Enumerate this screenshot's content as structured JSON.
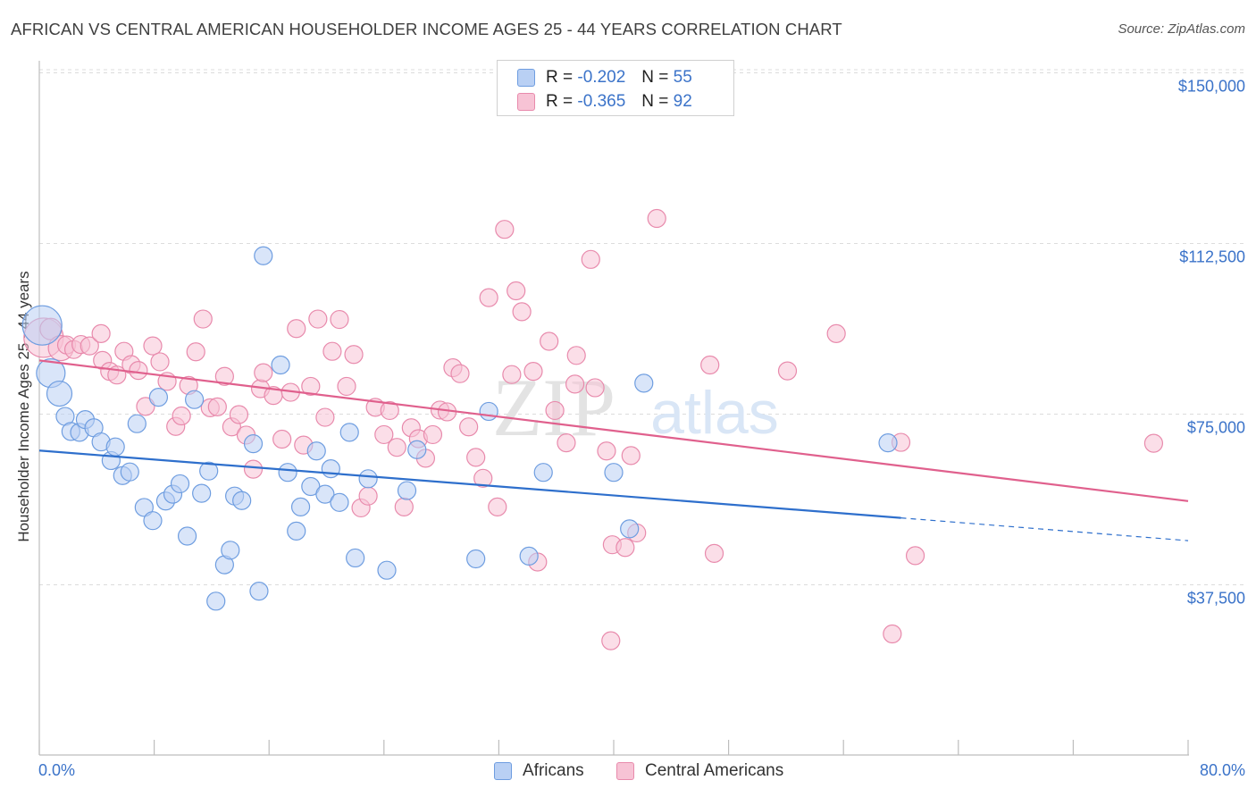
{
  "title": "AFRICAN VS CENTRAL AMERICAN HOUSEHOLDER INCOME AGES 25 - 44 YEARS CORRELATION CHART",
  "source": "Source: ZipAtlas.com",
  "watermark": {
    "zip": "ZIP",
    "atlas": "atlas"
  },
  "colors": {
    "africans_fill": "#b9d0f4",
    "africans_stroke": "#6e9de0",
    "africans_line": "#2e6fcc",
    "central_fill": "#f7c3d5",
    "central_stroke": "#e88aac",
    "central_line": "#e0608d",
    "tick_label": "#3b73c9",
    "grid": "#dcdcdc"
  },
  "legend": {
    "rows": [
      {
        "r_label": "R =",
        "r_value": "-0.202",
        "n_label": "N =",
        "n_value": "55"
      },
      {
        "r_label": "R =",
        "r_value": "-0.365",
        "n_label": "N =",
        "n_value": "92"
      }
    ]
  },
  "chart_data": {
    "type": "scatter",
    "title": "AFRICAN VS CENTRAL AMERICAN HOUSEHOLDER INCOME AGES 25 - 44 YEARS CORRELATION CHART",
    "xlabel": "",
    "ylabel": "Householder Income Ages 25 - 44 years",
    "xlim": [
      0,
      80
    ],
    "ylim": [
      0,
      150000
    ],
    "x_tick_labels": [
      "0.0%",
      "80.0%"
    ],
    "y_ticks": [
      37500,
      75000,
      112500,
      150000
    ],
    "y_tick_labels": [
      "$37,500",
      "$75,000",
      "$112,500",
      "$150,000"
    ],
    "grid": true,
    "legend_position": "top-center",
    "series": [
      {
        "name": "Africans",
        "trend": {
          "x": [
            0,
            60
          ],
          "y": [
            67000,
            52200
          ],
          "dashed_extension_to_x": 80,
          "dashed_end_y": 47200
        },
        "points": [
          [
            0.2,
            94500,
            22
          ],
          [
            0.8,
            84000,
            16
          ],
          [
            1.4,
            79500,
            14
          ],
          [
            1.8,
            74500,
            10
          ],
          [
            2.2,
            71200,
            10
          ],
          [
            2.8,
            71000,
            10
          ],
          [
            3.2,
            73800,
            10
          ],
          [
            3.8,
            72000,
            10
          ],
          [
            4.3,
            68900,
            10
          ],
          [
            5.0,
            64800,
            10
          ],
          [
            5.3,
            67800,
            10
          ],
          [
            5.8,
            61500,
            10
          ],
          [
            6.3,
            62300,
            10
          ],
          [
            6.8,
            72900,
            10
          ],
          [
            7.3,
            54500,
            10
          ],
          [
            7.9,
            51600,
            10
          ],
          [
            8.3,
            78700,
            10
          ],
          [
            8.8,
            55900,
            10
          ],
          [
            9.3,
            57400,
            10
          ],
          [
            9.8,
            59700,
            10
          ],
          [
            10.3,
            48200,
            10
          ],
          [
            10.8,
            78200,
            10
          ],
          [
            11.3,
            57600,
            10
          ],
          [
            11.8,
            62500,
            10
          ],
          [
            12.3,
            33900,
            10
          ],
          [
            12.9,
            41900,
            10
          ],
          [
            13.3,
            45100,
            10
          ],
          [
            13.6,
            57000,
            10
          ],
          [
            14.1,
            56000,
            10
          ],
          [
            14.9,
            68500,
            10
          ],
          [
            15.3,
            36100,
            10
          ],
          [
            15.6,
            109800,
            10
          ],
          [
            16.8,
            85800,
            10
          ],
          [
            17.3,
            62200,
            10
          ],
          [
            17.9,
            49300,
            10
          ],
          [
            18.2,
            54600,
            10
          ],
          [
            18.9,
            59100,
            10
          ],
          [
            19.3,
            66900,
            10
          ],
          [
            19.9,
            57400,
            10
          ],
          [
            20.3,
            63000,
            10
          ],
          [
            20.9,
            55600,
            10
          ],
          [
            21.6,
            71000,
            10
          ],
          [
            22.0,
            43400,
            10
          ],
          [
            22.9,
            60800,
            10
          ],
          [
            24.2,
            40700,
            10
          ],
          [
            25.6,
            58200,
            10
          ],
          [
            26.3,
            67200,
            10
          ],
          [
            30.4,
            43200,
            10
          ],
          [
            31.3,
            75600,
            10
          ],
          [
            34.1,
            43800,
            10
          ],
          [
            35.1,
            62200,
            10
          ],
          [
            40.0,
            62200,
            10
          ],
          [
            41.1,
            49800,
            10
          ],
          [
            42.1,
            81800,
            10
          ],
          [
            59.1,
            68700,
            10
          ]
        ]
      },
      {
        "name": "Central Americans",
        "trend": {
          "x": [
            0,
            80
          ],
          "y": [
            86800,
            55900
          ]
        },
        "points": [
          [
            0.3,
            91800,
            22
          ],
          [
            0.8,
            93700,
            12
          ],
          [
            1.5,
            89500,
            14
          ],
          [
            1.9,
            90200,
            10
          ],
          [
            2.4,
            89200,
            10
          ],
          [
            2.9,
            90300,
            10
          ],
          [
            3.5,
            90000,
            10
          ],
          [
            4.4,
            86800,
            10
          ],
          [
            4.3,
            92700,
            10
          ],
          [
            4.9,
            84400,
            10
          ],
          [
            5.4,
            83600,
            10
          ],
          [
            5.9,
            88800,
            10
          ],
          [
            6.4,
            85900,
            10
          ],
          [
            6.9,
            84600,
            10
          ],
          [
            7.4,
            76700,
            10
          ],
          [
            7.9,
            90000,
            10
          ],
          [
            8.4,
            86500,
            10
          ],
          [
            8.9,
            82200,
            10
          ],
          [
            9.5,
            72300,
            10
          ],
          [
            9.9,
            74600,
            10
          ],
          [
            10.4,
            81300,
            10
          ],
          [
            10.9,
            88700,
            10
          ],
          [
            11.4,
            95900,
            10
          ],
          [
            11.9,
            76400,
            10
          ],
          [
            12.4,
            76600,
            10
          ],
          [
            12.9,
            83300,
            10
          ],
          [
            13.4,
            72200,
            10
          ],
          [
            13.9,
            74900,
            10
          ],
          [
            14.4,
            70400,
            10
          ],
          [
            14.9,
            62900,
            10
          ],
          [
            15.4,
            80600,
            10
          ],
          [
            15.6,
            84100,
            10
          ],
          [
            16.3,
            79100,
            10
          ],
          [
            16.9,
            69500,
            10
          ],
          [
            17.5,
            79800,
            10
          ],
          [
            17.9,
            93800,
            10
          ],
          [
            18.4,
            68200,
            10
          ],
          [
            18.9,
            81100,
            10
          ],
          [
            19.4,
            95900,
            10
          ],
          [
            19.9,
            74300,
            10
          ],
          [
            20.4,
            88800,
            10
          ],
          [
            20.9,
            95800,
            10
          ],
          [
            21.4,
            81100,
            10
          ],
          [
            21.9,
            88100,
            10
          ],
          [
            22.4,
            54400,
            10
          ],
          [
            22.9,
            57000,
            10
          ],
          [
            23.4,
            76500,
            10
          ],
          [
            24.0,
            70500,
            10
          ],
          [
            24.4,
            75800,
            10
          ],
          [
            24.9,
            67700,
            10
          ],
          [
            25.4,
            54600,
            10
          ],
          [
            25.9,
            72000,
            10
          ],
          [
            26.4,
            69600,
            10
          ],
          [
            26.9,
            65300,
            10
          ],
          [
            27.4,
            70500,
            10
          ],
          [
            27.9,
            75900,
            10
          ],
          [
            28.4,
            75500,
            10
          ],
          [
            28.8,
            85200,
            10
          ],
          [
            29.3,
            83900,
            10
          ],
          [
            29.9,
            72200,
            10
          ],
          [
            30.4,
            65500,
            10
          ],
          [
            30.9,
            60900,
            10
          ],
          [
            31.3,
            100600,
            10
          ],
          [
            31.9,
            54600,
            10
          ],
          [
            32.4,
            115600,
            10
          ],
          [
            32.9,
            83700,
            10
          ],
          [
            33.2,
            102100,
            10
          ],
          [
            33.6,
            97500,
            10
          ],
          [
            34.4,
            84400,
            10
          ],
          [
            34.7,
            42500,
            10
          ],
          [
            35.5,
            91000,
            10
          ],
          [
            35.9,
            75800,
            10
          ],
          [
            36.7,
            68700,
            10
          ],
          [
            37.3,
            81600,
            10
          ],
          [
            37.4,
            87900,
            10
          ],
          [
            38.4,
            109000,
            10
          ],
          [
            38.7,
            80800,
            10
          ],
          [
            39.5,
            66900,
            10
          ],
          [
            39.9,
            46300,
            10
          ],
          [
            39.8,
            25200,
            10
          ],
          [
            40.8,
            45700,
            10
          ],
          [
            41.2,
            65900,
            10
          ],
          [
            41.6,
            48900,
            10
          ],
          [
            43.0,
            118000,
            10
          ],
          [
            46.7,
            85800,
            10
          ],
          [
            47.0,
            44400,
            10
          ],
          [
            52.1,
            84500,
            10
          ],
          [
            55.5,
            92700,
            10
          ],
          [
            59.4,
            26700,
            10
          ],
          [
            60.0,
            68800,
            10
          ],
          [
            61.0,
            43900,
            10
          ],
          [
            77.6,
            68600,
            10
          ]
        ]
      }
    ]
  },
  "bottom_legend": {
    "items": [
      {
        "label": "Africans"
      },
      {
        "label": "Central Americans"
      }
    ]
  }
}
